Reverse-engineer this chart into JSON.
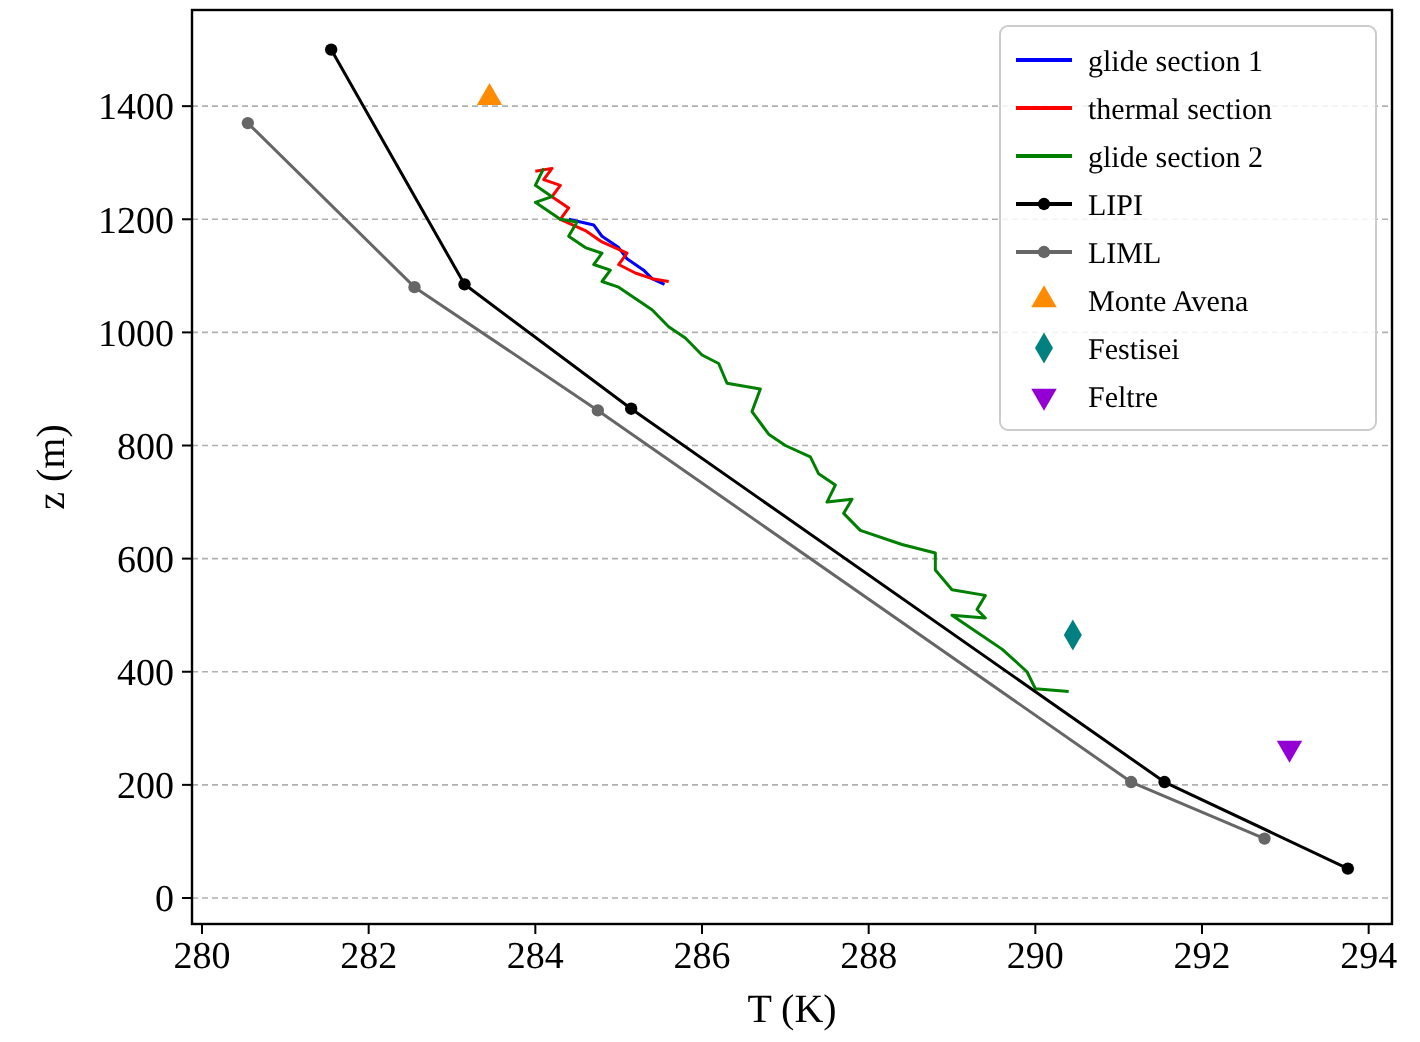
{
  "chart_data": {
    "type": "line",
    "xlabel": "T (K)",
    "ylabel": "z (m)",
    "xlim": [
      279.88,
      294.28
    ],
    "ylim": [
      -46,
      1570
    ],
    "xticks": [
      280,
      282,
      284,
      286,
      288,
      290,
      292,
      294
    ],
    "yticks": [
      0,
      200,
      400,
      600,
      800,
      1000,
      1200,
      1400
    ],
    "grid": "y",
    "legend": "top right",
    "series": [
      {
        "name": "glide section 1",
        "marker": "none",
        "color": "#0000ff",
        "x": [
          284.4,
          284.7,
          284.8,
          285.0,
          285.1,
          285.3,
          285.4,
          285.55
        ],
        "values": [
          1200,
          1190,
          1170,
          1150,
          1130,
          1110,
          1095,
          1085
        ]
      },
      {
        "name": "thermal section",
        "marker": "none",
        "color": "#ff0000",
        "x": [
          285.6,
          285.4,
          285.2,
          285.0,
          285.1,
          284.8,
          284.6,
          284.3,
          284.4,
          284.2,
          284.3,
          284.1,
          284.2,
          284.0
        ],
        "values": [
          1090,
          1095,
          1105,
          1120,
          1140,
          1160,
          1180,
          1200,
          1220,
          1240,
          1260,
          1270,
          1290,
          1285
        ]
      },
      {
        "name": "glide section 2",
        "marker": "none",
        "color": "#008000",
        "x": [
          284.1,
          284.0,
          284.2,
          284.0,
          284.3,
          284.5,
          284.4,
          284.6,
          284.8,
          284.7,
          284.9,
          284.8,
          285.0,
          285.2,
          285.4,
          285.6,
          285.8,
          286.0,
          286.2,
          286.3,
          286.7,
          286.6,
          286.8,
          287.0,
          287.3,
          287.4,
          287.6,
          287.5,
          287.8,
          287.7,
          287.9,
          288.4,
          288.8,
          288.8,
          289.0,
          289.4,
          289.3,
          289.4,
          289.0,
          289.3,
          289.6,
          289.9,
          290.0,
          290.4
        ],
        "values": [
          1290,
          1260,
          1240,
          1230,
          1200,
          1195,
          1170,
          1150,
          1140,
          1120,
          1110,
          1090,
          1080,
          1060,
          1040,
          1010,
          990,
          960,
          945,
          910,
          900,
          860,
          820,
          800,
          780,
          750,
          730,
          700,
          705,
          680,
          650,
          625,
          610,
          580,
          545,
          535,
          510,
          495,
          500,
          470,
          440,
          400,
          370,
          365
        ]
      },
      {
        "name": "LIPI",
        "marker": "circle",
        "color": "#000000",
        "x": [
          281.55,
          283.15,
          285.15,
          291.55,
          293.75
        ],
        "values": [
          1500,
          1085,
          865,
          205,
          52
        ]
      },
      {
        "name": "LIML",
        "marker": "circle",
        "color": "#666666",
        "x": [
          280.55,
          282.55,
          284.75,
          291.15,
          292.75
        ],
        "values": [
          1370,
          1080,
          862,
          205,
          105
        ]
      },
      {
        "name": "Monte Avena",
        "type": "scatter",
        "marker": "triangle",
        "color": "#ff8c00",
        "x": [
          283.45
        ],
        "values": [
          1415
        ]
      },
      {
        "name": "Festisei",
        "type": "scatter",
        "marker": "diamond",
        "color": "#008080",
        "x": [
          290.45
        ],
        "values": [
          465
        ]
      },
      {
        "name": "Feltre",
        "type": "scatter",
        "marker": "triangle-down",
        "color": "#9400d3",
        "x": [
          293.05
        ],
        "values": [
          265
        ]
      }
    ]
  }
}
